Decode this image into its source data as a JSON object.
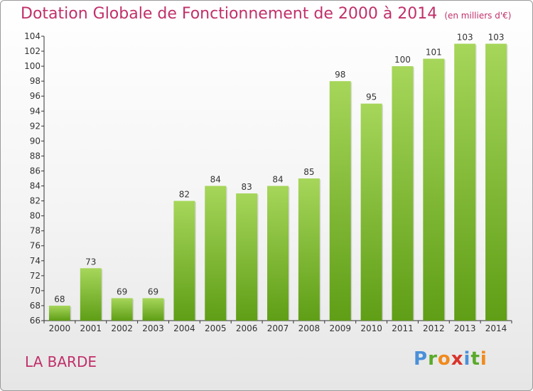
{
  "title": "Dotation Globale de Fonctionnement de 2000 à 2014",
  "unit": "(en milliers d'€)",
  "place": "LA BARDE",
  "logo": {
    "letters": [
      "P",
      "r",
      "o",
      "x",
      "i",
      "t",
      "i"
    ],
    "colors": [
      "#4a90d9",
      "#5aaa2a",
      "#f08a1c",
      "#d9342b",
      "#4a90d9",
      "#5aaa2a",
      "#f08a1c"
    ]
  },
  "colors": {
    "accent": "#c0306a",
    "bar_top": "#a6d65a",
    "bar_bottom": "#5f9e16"
  },
  "chart_data": {
    "type": "bar",
    "categories": [
      "2000",
      "2001",
      "2002",
      "2003",
      "2004",
      "2005",
      "2006",
      "2007",
      "2008",
      "2009",
      "2010",
      "2011",
      "2012",
      "2013",
      "2014"
    ],
    "values": [
      68,
      73,
      69,
      69,
      82,
      84,
      83,
      84,
      85,
      98,
      95,
      100,
      101,
      103,
      103
    ],
    "title": "Dotation Globale de Fonctionnement de 2000 à 2014",
    "xlabel": "",
    "ylabel": "",
    "ylim": [
      66,
      104
    ],
    "yticks": [
      66,
      68,
      70,
      72,
      74,
      76,
      78,
      80,
      82,
      84,
      86,
      88,
      90,
      92,
      94,
      96,
      98,
      100,
      102,
      104
    ],
    "grid": false,
    "legend": "none"
  }
}
